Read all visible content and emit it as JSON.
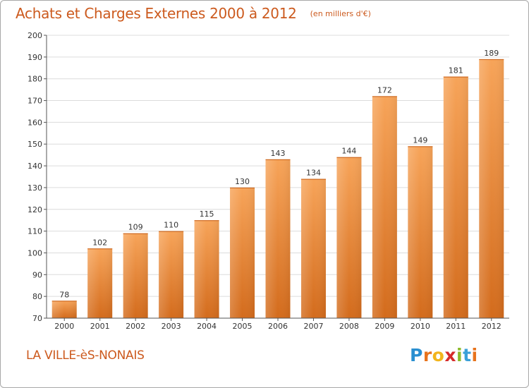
{
  "chart_data": {
    "type": "bar",
    "title": "Achats et Charges Externes 2000 à 2012",
    "subtitle": "(en milliers d'€)",
    "categories": [
      "2000",
      "2001",
      "2002",
      "2003",
      "2004",
      "2005",
      "2006",
      "2007",
      "2008",
      "2009",
      "2010",
      "2011",
      "2012"
    ],
    "values": [
      78,
      102,
      109,
      110,
      115,
      130,
      143,
      134,
      144,
      172,
      149,
      181,
      189
    ],
    "ylim": [
      70,
      200
    ],
    "yticks": [
      70,
      80,
      90,
      100,
      110,
      120,
      130,
      140,
      150,
      160,
      170,
      180,
      190,
      200
    ],
    "grid": true,
    "bar_color_top": "#f7a459",
    "bar_color_bottom": "#d36b1c"
  },
  "footer": {
    "commune": "LA VILLE-èS-NONAIS",
    "logo_letters": [
      "P",
      "r",
      "o",
      "x",
      "i",
      "t",
      "i"
    ],
    "logo_colors": [
      "#2a8fd0",
      "#e8731c",
      "#f2b51c",
      "#d62b2b",
      "#8dbb2c",
      "#3aa0d8",
      "#e8731c"
    ]
  },
  "colors": {
    "title": "#cc5a1e",
    "grid": "#dcdcdc",
    "axis": "#555555",
    "label": "#333333"
  }
}
